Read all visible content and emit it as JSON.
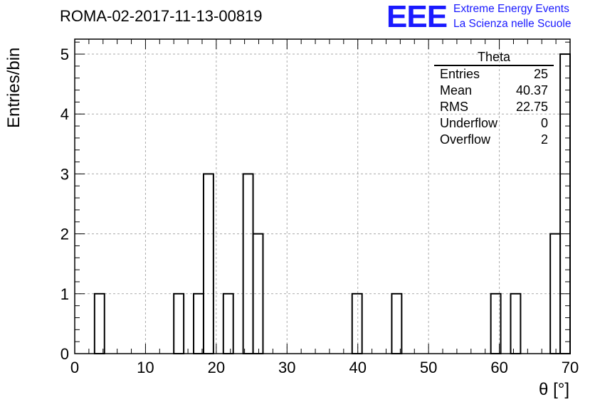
{
  "header": {
    "run_title": "ROMA-02-2017-11-13-00819",
    "logo": "EEE",
    "org_line1": "Extreme Energy Events",
    "org_line2": "La Scienza nelle Scuole"
  },
  "chart_data": {
    "type": "bar",
    "histogram": true,
    "xlabel": "θ [°]",
    "ylabel": "Entries/bin",
    "xlim": [
      0,
      70
    ],
    "ylim": [
      0,
      5.25
    ],
    "xticks": [
      0,
      10,
      20,
      30,
      40,
      50,
      60,
      70
    ],
    "yticks": [
      0,
      1,
      2,
      3,
      4,
      5
    ],
    "grid": true,
    "bin_width": 1.4,
    "bins": [
      {
        "x0": 2.8,
        "value": 1
      },
      {
        "x0": 14.0,
        "value": 1
      },
      {
        "x0": 16.8,
        "value": 1
      },
      {
        "x0": 18.2,
        "value": 3
      },
      {
        "x0": 21.0,
        "value": 1
      },
      {
        "x0": 23.8,
        "value": 3
      },
      {
        "x0": 25.2,
        "value": 2
      },
      {
        "x0": 39.2,
        "value": 1
      },
      {
        "x0": 44.8,
        "value": 1
      },
      {
        "x0": 58.8,
        "value": 1
      },
      {
        "x0": 61.6,
        "value": 1
      },
      {
        "x0": 67.2,
        "value": 2
      },
      {
        "x0": 68.6,
        "value": 5
      }
    ],
    "stats_box": {
      "title": "Theta",
      "rows": [
        {
          "label": "Entries",
          "value": "25"
        },
        {
          "label": "Mean",
          "value": "40.37"
        },
        {
          "label": "RMS",
          "value": "22.75"
        },
        {
          "label": "Underflow",
          "value": "0"
        },
        {
          "label": "Overflow",
          "value": "2"
        }
      ]
    }
  }
}
